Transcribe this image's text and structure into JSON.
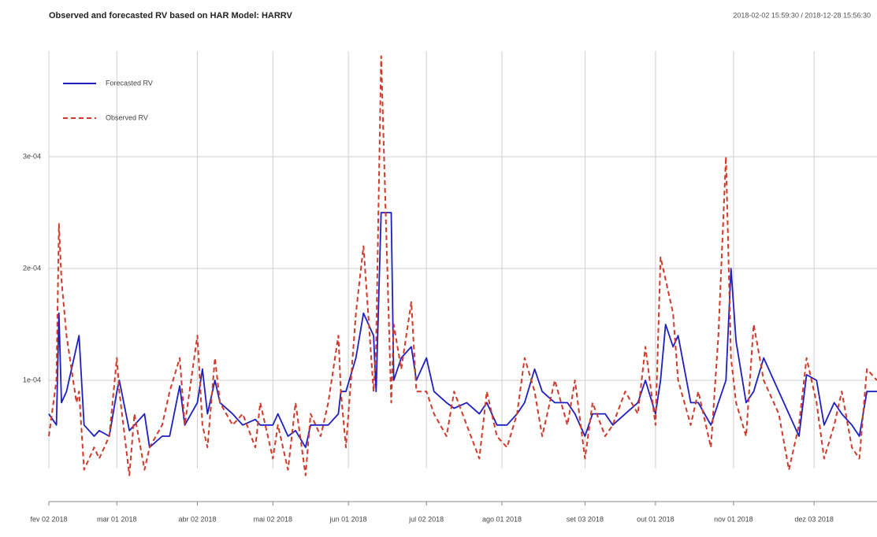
{
  "chart_data": {
    "type": "line",
    "title": "Observed and forecasted RV based on HAR Model: HARRV",
    "subtitle": "2018-02-02 15:59:30 / 2018-12-28 15:56:30",
    "x": [
      "2018-02-02",
      "2018-02-05",
      "2018-02-06",
      "2018-02-07",
      "2018-02-09",
      "2018-02-13",
      "2018-02-14",
      "2018-02-16",
      "2018-02-20",
      "2018-02-22",
      "2018-02-26",
      "2018-03-01",
      "2018-03-02",
      "2018-03-06",
      "2018-03-08",
      "2018-03-12",
      "2018-03-14",
      "2018-03-19",
      "2018-03-22",
      "2018-03-26",
      "2018-03-28",
      "2018-04-02",
      "2018-04-04",
      "2018-04-06",
      "2018-04-09",
      "2018-04-11",
      "2018-04-16",
      "2018-04-20",
      "2018-04-25",
      "2018-04-27",
      "2018-05-02",
      "2018-05-04",
      "2018-05-08",
      "2018-05-11",
      "2018-05-15",
      "2018-05-17",
      "2018-05-21",
      "2018-05-24",
      "2018-05-28",
      "2018-05-29",
      "2018-05-31",
      "2018-06-04",
      "2018-06-07",
      "2018-06-11",
      "2018-06-12",
      "2018-06-14",
      "2018-06-18",
      "2018-06-19",
      "2018-06-22",
      "2018-06-26",
      "2018-06-28",
      "2018-07-02",
      "2018-07-05",
      "2018-07-10",
      "2018-07-13",
      "2018-07-18",
      "2018-07-23",
      "2018-07-26",
      "2018-07-30",
      "2018-08-03",
      "2018-08-07",
      "2018-08-10",
      "2018-08-14",
      "2018-08-17",
      "2018-08-22",
      "2018-08-27",
      "2018-08-30",
      "2018-09-03",
      "2018-09-06",
      "2018-09-11",
      "2018-09-14",
      "2018-09-19",
      "2018-09-24",
      "2018-09-27",
      "2018-10-01",
      "2018-10-03",
      "2018-10-05",
      "2018-10-08",
      "2018-10-10",
      "2018-10-15",
      "2018-10-18",
      "2018-10-23",
      "2018-10-26",
      "2018-10-29",
      "2018-10-31",
      "2018-11-02",
      "2018-11-06",
      "2018-11-09",
      "2018-11-13",
      "2018-11-19",
      "2018-11-23",
      "2018-11-27",
      "2018-11-30",
      "2018-12-04",
      "2018-12-07",
      "2018-12-11",
      "2018-12-14",
      "2018-12-18",
      "2018-12-21",
      "2018-12-24",
      "2018-12-28"
    ],
    "series": [
      {
        "name": "Forecasted RV",
        "color": "#1f1fbf",
        "dash": false,
        "values": [
          7e-05,
          6e-05,
          0.00016,
          8e-05,
          9e-05,
          0.00013,
          0.00014,
          6e-05,
          5e-05,
          5.5e-05,
          5e-05,
          9e-05,
          0.0001,
          5.5e-05,
          6e-05,
          7e-05,
          4e-05,
          5e-05,
          5e-05,
          9.5e-05,
          6e-05,
          8e-05,
          0.00011,
          7e-05,
          0.0001,
          8e-05,
          7e-05,
          6e-05,
          6.5e-05,
          6e-05,
          6e-05,
          7e-05,
          5e-05,
          5.5e-05,
          4e-05,
          6e-05,
          6e-05,
          6e-05,
          7e-05,
          9e-05,
          9e-05,
          0.00012,
          0.00016,
          0.00014,
          9e-05,
          0.00025,
          0.00025,
          0.0001,
          0.00012,
          0.00013,
          0.0001,
          0.00012,
          9e-05,
          8e-05,
          7.5e-05,
          8e-05,
          7e-05,
          8e-05,
          6e-05,
          6e-05,
          7e-05,
          8e-05,
          0.00011,
          9e-05,
          8e-05,
          8e-05,
          7e-05,
          5e-05,
          7e-05,
          7e-05,
          6e-05,
          7e-05,
          8e-05,
          0.0001,
          7e-05,
          0.0001,
          0.00015,
          0.00013,
          0.00014,
          8e-05,
          8e-05,
          6e-05,
          8e-05,
          0.0001,
          0.0002,
          0.000135,
          8e-05,
          9e-05,
          0.00012,
          9e-05,
          7e-05,
          5e-05,
          0.000105,
          0.0001,
          6e-05,
          8e-05,
          7e-05,
          6e-05,
          5e-05,
          9e-05,
          9e-05
        ]
      },
      {
        "name": "Observed RV",
        "color": "#d03a2a",
        "dash": true,
        "values": [
          5e-05,
          0.0001,
          0.00024,
          0.00019,
          0.00014,
          8e-05,
          9e-05,
          2e-05,
          4e-05,
          3e-05,
          5e-05,
          0.00012,
          9e-05,
          1.5e-05,
          7e-05,
          2e-05,
          4e-05,
          6e-05,
          9e-05,
          0.00012,
          6e-05,
          0.00014,
          6e-05,
          4e-05,
          0.00012,
          8e-05,
          6e-05,
          7e-05,
          4e-05,
          8e-05,
          3e-05,
          6e-05,
          2e-05,
          8e-05,
          1.5e-05,
          7e-05,
          5e-05,
          8e-05,
          0.00014,
          9e-05,
          4e-05,
          0.00016,
          0.00022,
          9e-05,
          0.00013,
          0.00039,
          8e-05,
          0.00015,
          0.00011,
          0.00017,
          9e-05,
          9e-05,
          7e-05,
          5e-05,
          9e-05,
          6e-05,
          3e-05,
          9e-05,
          5e-05,
          4e-05,
          7e-05,
          0.00012,
          9e-05,
          5e-05,
          0.0001,
          6e-05,
          0.0001,
          3e-05,
          8e-05,
          5e-05,
          6e-05,
          9e-05,
          7e-05,
          0.00013,
          6e-05,
          0.00021,
          0.00019,
          0.00016,
          0.0001,
          6e-05,
          9e-05,
          4e-05,
          0.00014,
          0.0003,
          0.00012,
          8e-05,
          5e-05,
          0.00015,
          0.0001,
          7e-05,
          2e-05,
          6e-05,
          0.00012,
          8e-05,
          3e-05,
          6e-05,
          9e-05,
          4e-05,
          3e-05,
          0.00011,
          0.0001
        ]
      }
    ],
    "xlim": [
      "2018-02-02",
      "2018-12-28"
    ],
    "xticks": [
      {
        "value": "2018-02-02",
        "label": "fev 02 2018"
      },
      {
        "value": "2018-03-01",
        "label": "mar 01 2018"
      },
      {
        "value": "2018-04-02",
        "label": "abr 02 2018"
      },
      {
        "value": "2018-05-02",
        "label": "mai 02 2018"
      },
      {
        "value": "2018-06-01",
        "label": "jun 01 2018"
      },
      {
        "value": "2018-07-02",
        "label": "jul 02 2018"
      },
      {
        "value": "2018-08-01",
        "label": "ago 01 2018"
      },
      {
        "value": "2018-09-03",
        "label": "set 03 2018"
      },
      {
        "value": "2018-10-01",
        "label": "out 01 2018"
      },
      {
        "value": "2018-11-01",
        "label": "nov 01 2018"
      },
      {
        "value": "2018-12-03",
        "label": "dez 03 2018"
      }
    ],
    "ylim": [
      0,
      0.0004
    ],
    "yticks": [
      {
        "value": 0.0001,
        "label": "1e-04"
      },
      {
        "value": 0.0002,
        "label": "2e-04"
      },
      {
        "value": 0.0003,
        "label": "3e-04"
      }
    ],
    "grid": true,
    "legend": "topleft"
  }
}
